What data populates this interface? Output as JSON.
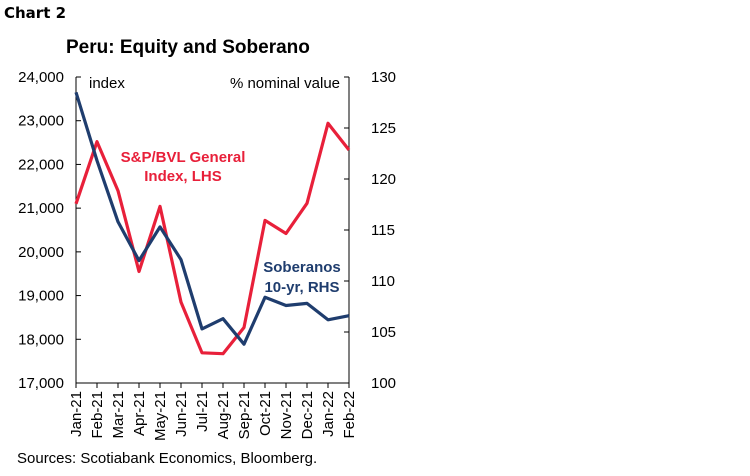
{
  "chart_label": "Chart 2",
  "source": "Sources: Scotiabank Economics, Bloomberg.",
  "chart_data": {
    "type": "line",
    "title": "Peru: Equity and Soberano",
    "left_axis_unit": "index",
    "right_axis_unit": "% nominal value",
    "x": [
      "Jan-21",
      "Feb-21",
      "Mar-21",
      "Apr-21",
      "May-21",
      "Jun-21",
      "Jul-21",
      "Aug-21",
      "Sep-21",
      "Oct-21",
      "Nov-21",
      "Dec-21",
      "Jan-22",
      "Feb-22"
    ],
    "y_left_lim": [
      17000,
      24000
    ],
    "y_right_lim": [
      100,
      130
    ],
    "y_left_ticks": [
      "17,000",
      "18,000",
      "19,000",
      "20,000",
      "21,000",
      "22,000",
      "23,000",
      "24,000"
    ],
    "y_right_ticks": [
      "100",
      "105",
      "110",
      "115",
      "120",
      "125",
      "130"
    ],
    "series": [
      {
        "label_line1": "S&P/BVL General",
        "label_line2": "Index, LHS",
        "axis": "left",
        "color": "#e8203a",
        "values": [
          21100,
          22520,
          21400,
          19550,
          21040,
          18850,
          17690,
          17670,
          18270,
          20720,
          20420,
          21110,
          22940,
          22330
        ]
      },
      {
        "label_line1": "Soberanos",
        "label_line2": "10-yr, RHS",
        "axis": "right",
        "color": "#1f3d6e",
        "values": [
          128.5,
          121.8,
          115.8,
          112.0,
          115.3,
          112.1,
          105.3,
          106.3,
          103.8,
          108.4,
          107.6,
          107.8,
          106.2,
          106.6
        ]
      }
    ],
    "grid": false
  }
}
